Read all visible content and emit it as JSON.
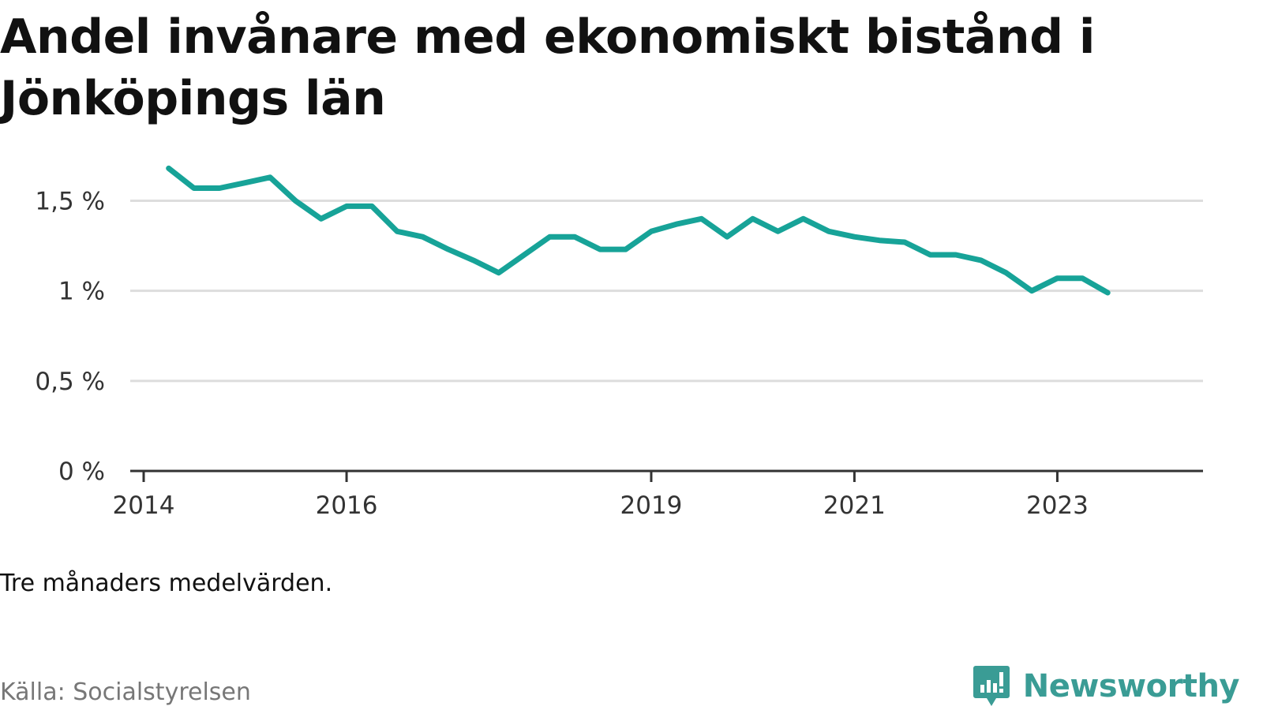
{
  "header": {
    "title": "Andel invånare med ekonomiskt bistånd i Jönköpings län"
  },
  "footer": {
    "note": "Tre månaders medelvärden.",
    "source": "Källa: Socialstyrelsen",
    "brand": "Newsworthy",
    "brand_icon": "newsworthy-logo-icon"
  },
  "colors": {
    "line": "#17a398",
    "grid": "#dddddd",
    "axis": "#333333",
    "brand": "#3a9c95"
  },
  "chart_data": {
    "type": "line",
    "title": "Andel invånare med ekonomiskt bistånd i Jönköpings län",
    "xlabel": "",
    "ylabel": "",
    "xlim": [
      "2014-01-01",
      "2024-04-01"
    ],
    "ylim": [
      0,
      1.8
    ],
    "grid": true,
    "legend": "none",
    "x_ticks": [
      {
        "date": "2014-01-01",
        "label": "2014"
      },
      {
        "date": "2016-01-01",
        "label": "2016"
      },
      {
        "date": "2019-01-01",
        "label": "2019"
      },
      {
        "date": "2021-01-01",
        "label": "2021"
      },
      {
        "date": "2023-01-01",
        "label": "2023"
      }
    ],
    "y_ticks": [
      {
        "value": 0,
        "label": "0 %"
      },
      {
        "value": 0.5,
        "label": "0,5 %"
      },
      {
        "value": 1,
        "label": "1 %"
      },
      {
        "value": 1.5,
        "label": "1,5 %"
      }
    ],
    "series": [
      {
        "x": [
          "2014-04-01",
          "2014-07-01",
          "2014-10-01",
          "2015-01-01",
          "2015-04-01",
          "2015-07-01",
          "2015-10-01",
          "2016-01-01",
          "2016-04-01",
          "2016-07-01",
          "2016-10-01",
          "2017-01-01",
          "2017-04-01",
          "2017-07-01",
          "2017-10-01",
          "2018-01-01",
          "2018-04-01",
          "2018-07-01",
          "2018-10-01",
          "2019-01-01",
          "2019-04-01",
          "2019-07-01",
          "2019-10-01",
          "2020-01-01",
          "2020-04-01",
          "2020-07-01",
          "2020-10-01",
          "2021-01-01",
          "2021-04-01",
          "2021-07-01",
          "2021-10-01",
          "2022-01-01",
          "2022-04-01",
          "2022-07-01",
          "2022-10-01",
          "2023-01-01",
          "2023-04-01",
          "2023-07-01"
        ],
        "values": [
          1.68,
          1.57,
          1.57,
          1.6,
          1.63,
          1.5,
          1.4,
          1.47,
          1.47,
          1.33,
          1.3,
          1.23,
          1.17,
          1.1,
          1.2,
          1.3,
          1.3,
          1.23,
          1.23,
          1.33,
          1.37,
          1.4,
          1.3,
          1.4,
          1.33,
          1.4,
          1.33,
          1.3,
          1.28,
          1.27,
          1.2,
          1.2,
          1.17,
          1.1,
          1.0,
          1.07,
          1.07,
          0.99
        ]
      }
    ]
  }
}
